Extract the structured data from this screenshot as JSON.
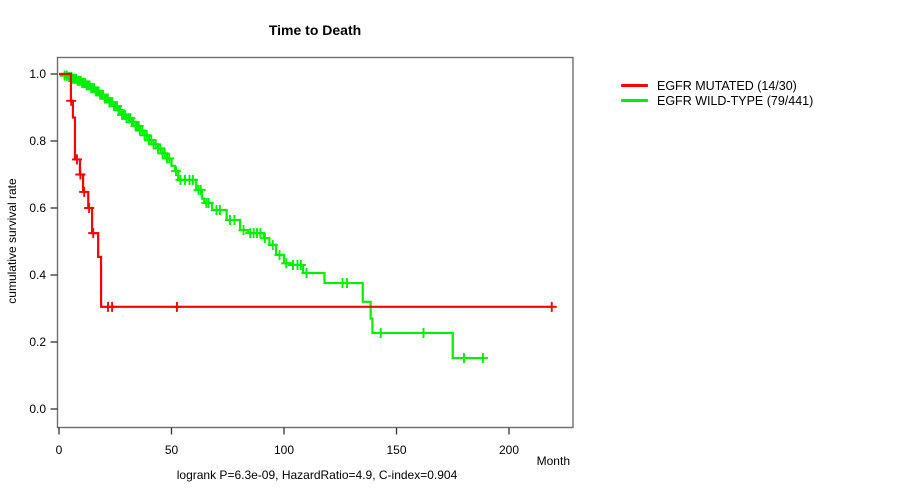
{
  "title": "Time to Death",
  "axis": {
    "x_label": "Month",
    "y_label": "cumulative survival rate"
  },
  "footnote": "logrank P=6.3e-09, HazardRatio=4.9, C-index=0.904",
  "chart_data": {
    "type": "line",
    "subtype": "kaplan-meier-step-curve",
    "title": "Time to Death",
    "xlabel": "Month",
    "ylabel": "cumulative survival rate",
    "xlim": [
      0,
      228
    ],
    "ylim": [
      0,
      1.05
    ],
    "x_ticks": [
      0,
      50,
      100,
      150,
      200
    ],
    "y_ticks": [
      "0.0",
      "0.2",
      "0.4",
      "0.6",
      "0.8",
      "1.0"
    ],
    "grid": false,
    "legend_position": "right-outside",
    "box_color": "#6e6e6e",
    "footnote": "logrank P=6.3e-09, HazardRatio=4.9, C-index=0.904",
    "series": [
      {
        "name": "EGFR WILD-TYPE (79/441)",
        "color": "#00ee00",
        "end_month": 188.4,
        "steps": [
          [
            0,
            1.0
          ],
          [
            2,
            0.995
          ],
          [
            4,
            0.991
          ],
          [
            6,
            0.986
          ],
          [
            8,
            0.98
          ],
          [
            10,
            0.973
          ],
          [
            12,
            0.966
          ],
          [
            14,
            0.958
          ],
          [
            16,
            0.948
          ],
          [
            18,
            0.938
          ],
          [
            20,
            0.927
          ],
          [
            22,
            0.916
          ],
          [
            24,
            0.904
          ],
          [
            26,
            0.892
          ],
          [
            28,
            0.878
          ],
          [
            30,
            0.868
          ],
          [
            32,
            0.857
          ],
          [
            34,
            0.845
          ],
          [
            36,
            0.831
          ],
          [
            38,
            0.817
          ],
          [
            40,
            0.803
          ],
          [
            42,
            0.79
          ],
          [
            44,
            0.778
          ],
          [
            46,
            0.763
          ],
          [
            48,
            0.748
          ],
          [
            50,
            0.726
          ],
          [
            51.5,
            0.71
          ],
          [
            53,
            0.684
          ],
          [
            61,
            0.654
          ],
          [
            63.5,
            0.628
          ],
          [
            64.5,
            0.615
          ],
          [
            68,
            0.594
          ],
          [
            74.5,
            0.564
          ],
          [
            80.5,
            0.534
          ],
          [
            84,
            0.525
          ],
          [
            91,
            0.51
          ],
          [
            93.5,
            0.49
          ],
          [
            96.5,
            0.46
          ],
          [
            100,
            0.435
          ],
          [
            103,
            0.43
          ],
          [
            108.5,
            0.406
          ],
          [
            118,
            0.376
          ],
          [
            135,
            0.32
          ],
          [
            138.5,
            0.27
          ],
          [
            139.3,
            0.227
          ],
          [
            175,
            0.152
          ]
        ],
        "censor_months": [
          2.5,
          3.5,
          4.5,
          5.5,
          6.2,
          7,
          7.6,
          8.3,
          9,
          9.6,
          10.3,
          11,
          11.6,
          12.3,
          13,
          13.6,
          14.3,
          15,
          15.6,
          16.3,
          17,
          17.6,
          18.3,
          19,
          19.6,
          20.3,
          21,
          21.7,
          22.4,
          23,
          23.7,
          24.4,
          25,
          25.8,
          26.5,
          27.2,
          28,
          28.7,
          29.4,
          30,
          31,
          31.7,
          32.4,
          33,
          34,
          34.7,
          35.4,
          36,
          37,
          38,
          39,
          40,
          41,
          42,
          43,
          44,
          45,
          46,
          47,
          48,
          49,
          52,
          54,
          56,
          58,
          59.5,
          62,
          63,
          65.5,
          66.5,
          70,
          71.5,
          76,
          78,
          82,
          85,
          86.5,
          88,
          89.5,
          91.5,
          95,
          98,
          101,
          104,
          106,
          107.5,
          110,
          126,
          128,
          143,
          162,
          180,
          188.4
        ]
      },
      {
        "name": "EGFR MUTATED (14/30)",
        "color": "#ff0000",
        "end_month": 219,
        "steps": [
          [
            0,
            1.0
          ],
          [
            5.3,
            0.92
          ],
          [
            6.2,
            0.87
          ],
          [
            7.1,
            0.745
          ],
          [
            9.3,
            0.7
          ],
          [
            10.7,
            0.648
          ],
          [
            13,
            0.6
          ],
          [
            14.7,
            0.525
          ],
          [
            17.4,
            0.454
          ],
          [
            18.7,
            0.305
          ]
        ],
        "censor_months": [
          5.4,
          8.0,
          9.5,
          11.2,
          13.4,
          15.2,
          21.8,
          23.6,
          52.4,
          219
        ]
      }
    ]
  },
  "legend": {
    "items": [
      {
        "label": "EGFR MUTATED (14/30)",
        "color": "#ff0000"
      },
      {
        "label": "EGFR WILD-TYPE (79/441)",
        "color": "#00ee00"
      }
    ]
  }
}
